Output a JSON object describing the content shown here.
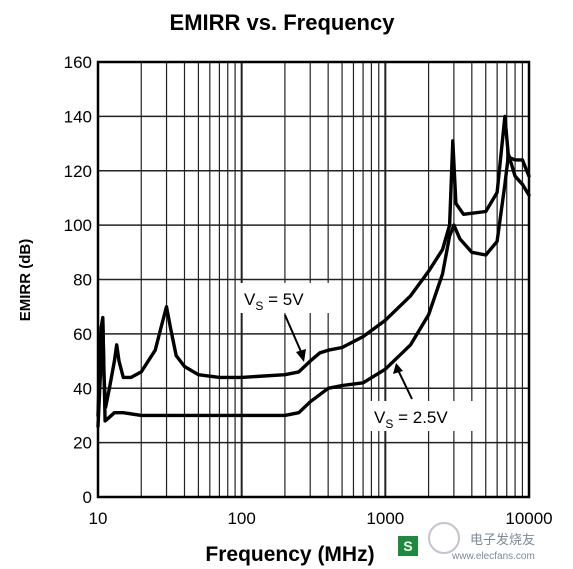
{
  "chart_data": {
    "type": "line",
    "title": "EMIRR vs. Frequency",
    "xlabel": "Frequency (MHz)",
    "ylabel": "EMIRR (dB)",
    "x_scale": "log",
    "xlim": [
      10,
      10000
    ],
    "ylim": [
      0,
      160
    ],
    "x_ticks": [
      "10",
      "100",
      "1000",
      "10000"
    ],
    "y_ticks": [
      "0",
      "20",
      "40",
      "60",
      "80",
      "100",
      "120",
      "140",
      "160"
    ],
    "grid": true,
    "series": [
      {
        "name": "VS = 5V",
        "x": [
          10,
          10.5,
          10.8,
          11,
          11.3,
          12,
          13,
          13.5,
          14,
          15,
          17,
          20,
          25,
          28,
          30,
          32,
          35,
          40,
          50,
          70,
          100,
          200,
          250,
          300,
          350,
          400,
          500,
          700,
          1000,
          1500,
          2000,
          2500,
          2800,
          2950,
          3100,
          3500,
          5000,
          6000,
          6800,
          7200,
          8000,
          9000,
          10000
        ],
        "values": [
          30,
          62,
          66,
          45,
          33,
          40,
          50,
          56,
          50,
          44,
          44,
          46,
          54,
          64,
          70,
          62,
          52,
          48,
          45,
          44,
          44,
          45,
          46,
          50,
          53,
          54,
          55,
          59,
          65,
          74,
          83,
          91,
          100,
          131,
          108,
          104,
          105,
          112,
          140,
          125,
          124,
          124,
          118
        ]
      },
      {
        "name": "VS = 2.5V",
        "x": [
          10,
          10.4,
          10.8,
          11.2,
          11.8,
          13,
          15,
          20,
          50,
          100,
          200,
          250,
          300,
          400,
          500,
          700,
          1000,
          1500,
          2000,
          2500,
          2800,
          3000,
          3300,
          4000,
          5000,
          6000,
          6800,
          7200,
          8000,
          9000,
          10000
        ],
        "values": [
          26,
          45,
          65,
          28,
          29,
          31,
          31,
          30,
          30,
          30,
          30,
          31,
          35,
          40,
          41,
          42,
          47,
          56,
          67,
          82,
          96,
          100,
          95,
          90,
          89,
          94,
          115,
          126,
          118,
          115,
          111
        ]
      }
    ],
    "annotations": [
      {
        "base": "V",
        "sub": "S",
        "rest": " = 5V"
      },
      {
        "base": "V",
        "sub": "S",
        "rest": " = 2.5V"
      }
    ]
  },
  "watermark": {
    "name": "电子发烧友",
    "url": "www.elecfans.com"
  }
}
